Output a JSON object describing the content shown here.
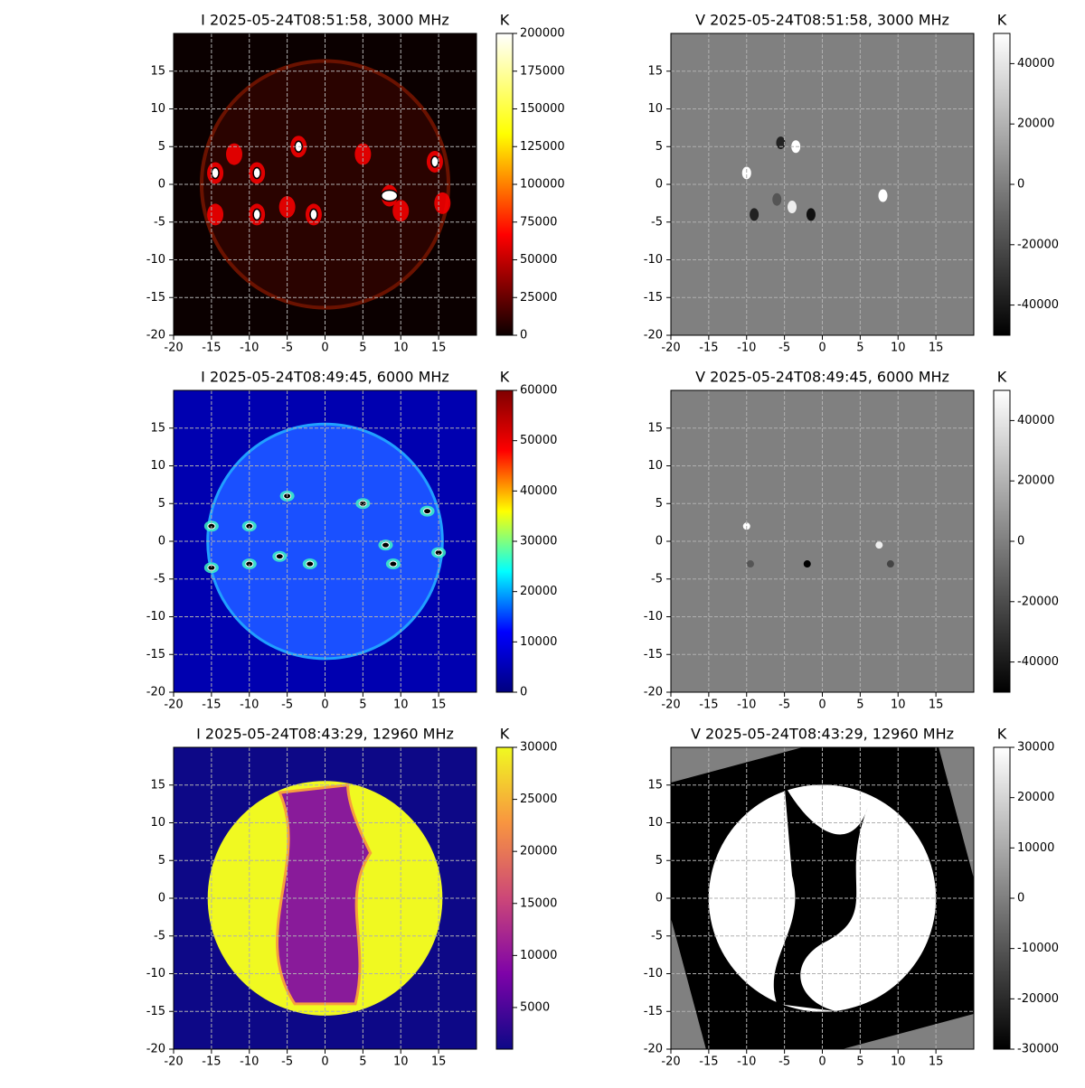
{
  "chart_data": [
    {
      "type": "image",
      "title": "I 2025-05-24T08:51:58, 3000 MHz",
      "xlim": [
        -20,
        20
      ],
      "ylim": [
        -20,
        20
      ],
      "xticks": [
        -20,
        -15,
        -10,
        -5,
        0,
        5,
        10,
        15
      ],
      "yticks": [
        -20,
        -15,
        -10,
        -5,
        0,
        5,
        10,
        15
      ],
      "grid": true,
      "colorbar_label": "K",
      "clim": [
        0,
        200000
      ],
      "cticks": [
        0,
        25000,
        50000,
        75000,
        100000,
        125000,
        150000,
        175000,
        200000
      ],
      "colormap": [
        "#0b0000",
        "#ff0000",
        "#ffff00",
        "#ffffff"
      ]
    },
    {
      "type": "image",
      "title": "V 2025-05-24T08:51:58, 3000 MHz",
      "xlim": [
        -20,
        20
      ],
      "ylim": [
        -20,
        20
      ],
      "xticks": [
        -20,
        -15,
        -10,
        -5,
        0,
        5,
        10,
        15
      ],
      "yticks": [
        -20,
        -15,
        -10,
        -5,
        0,
        5,
        10,
        15
      ],
      "grid": true,
      "colorbar_label": "K",
      "clim": [
        -50000,
        50000
      ],
      "cticks": [
        -40000,
        -20000,
        0,
        20000,
        40000
      ],
      "colormap": [
        "#000000",
        "#ffffff"
      ]
    },
    {
      "type": "image",
      "title": "I 2025-05-24T08:49:45, 6000 MHz",
      "xlim": [
        -20,
        20
      ],
      "ylim": [
        -20,
        20
      ],
      "xticks": [
        -20,
        -15,
        -10,
        -5,
        0,
        5,
        10,
        15
      ],
      "yticks": [
        -20,
        -15,
        -10,
        -5,
        0,
        5,
        10,
        15
      ],
      "grid": true,
      "colorbar_label": "K",
      "clim": [
        0,
        60000
      ],
      "cticks": [
        0,
        10000,
        20000,
        30000,
        40000,
        50000,
        60000
      ],
      "colormap": [
        "#00007f",
        "#0000ff",
        "#00ffff",
        "#ffff00",
        "#ff0000",
        "#7f0000"
      ]
    },
    {
      "type": "image",
      "title": "V 2025-05-24T08:49:45, 6000 MHz",
      "xlim": [
        -20,
        20
      ],
      "ylim": [
        -20,
        20
      ],
      "xticks": [
        -20,
        -15,
        -10,
        -5,
        0,
        5,
        10,
        15
      ],
      "yticks": [
        -20,
        -15,
        -10,
        -5,
        0,
        5,
        10,
        15
      ],
      "grid": true,
      "colorbar_label": "K",
      "clim": [
        -50000,
        50000
      ],
      "cticks": [
        -40000,
        -20000,
        0,
        20000,
        40000
      ],
      "colormap": [
        "#000000",
        "#ffffff"
      ]
    },
    {
      "type": "image",
      "title": "I 2025-05-24T08:43:29, 12960 MHz",
      "xlim": [
        -20,
        20
      ],
      "ylim": [
        -20,
        20
      ],
      "xticks": [
        -20,
        -15,
        -10,
        -5,
        0,
        5,
        10,
        15
      ],
      "yticks": [
        -20,
        -15,
        -10,
        -5,
        0,
        5,
        10,
        15
      ],
      "grid": true,
      "colorbar_label": "K",
      "clim": [
        1000,
        30000
      ],
      "cticks": [
        5000,
        10000,
        15000,
        20000,
        25000,
        30000
      ],
      "colormap": [
        "#0d0887",
        "#7e03a8",
        "#cc4778",
        "#f89540",
        "#f0f921"
      ]
    },
    {
      "type": "image",
      "title": "V 2025-05-24T08:43:29, 12960 MHz",
      "xlim": [
        -20,
        20
      ],
      "ylim": [
        -20,
        20
      ],
      "xticks": [
        -20,
        -15,
        -10,
        -5,
        0,
        5,
        10,
        15
      ],
      "yticks": [
        -20,
        -15,
        -10,
        -5,
        0,
        5,
        10,
        15
      ],
      "grid": true,
      "colorbar_label": "K",
      "clim": [
        -30000,
        30000
      ],
      "cticks": [
        -30000,
        -20000,
        -10000,
        0,
        10000,
        20000,
        30000
      ],
      "colormap": [
        "#000000",
        "#ffffff"
      ]
    }
  ]
}
